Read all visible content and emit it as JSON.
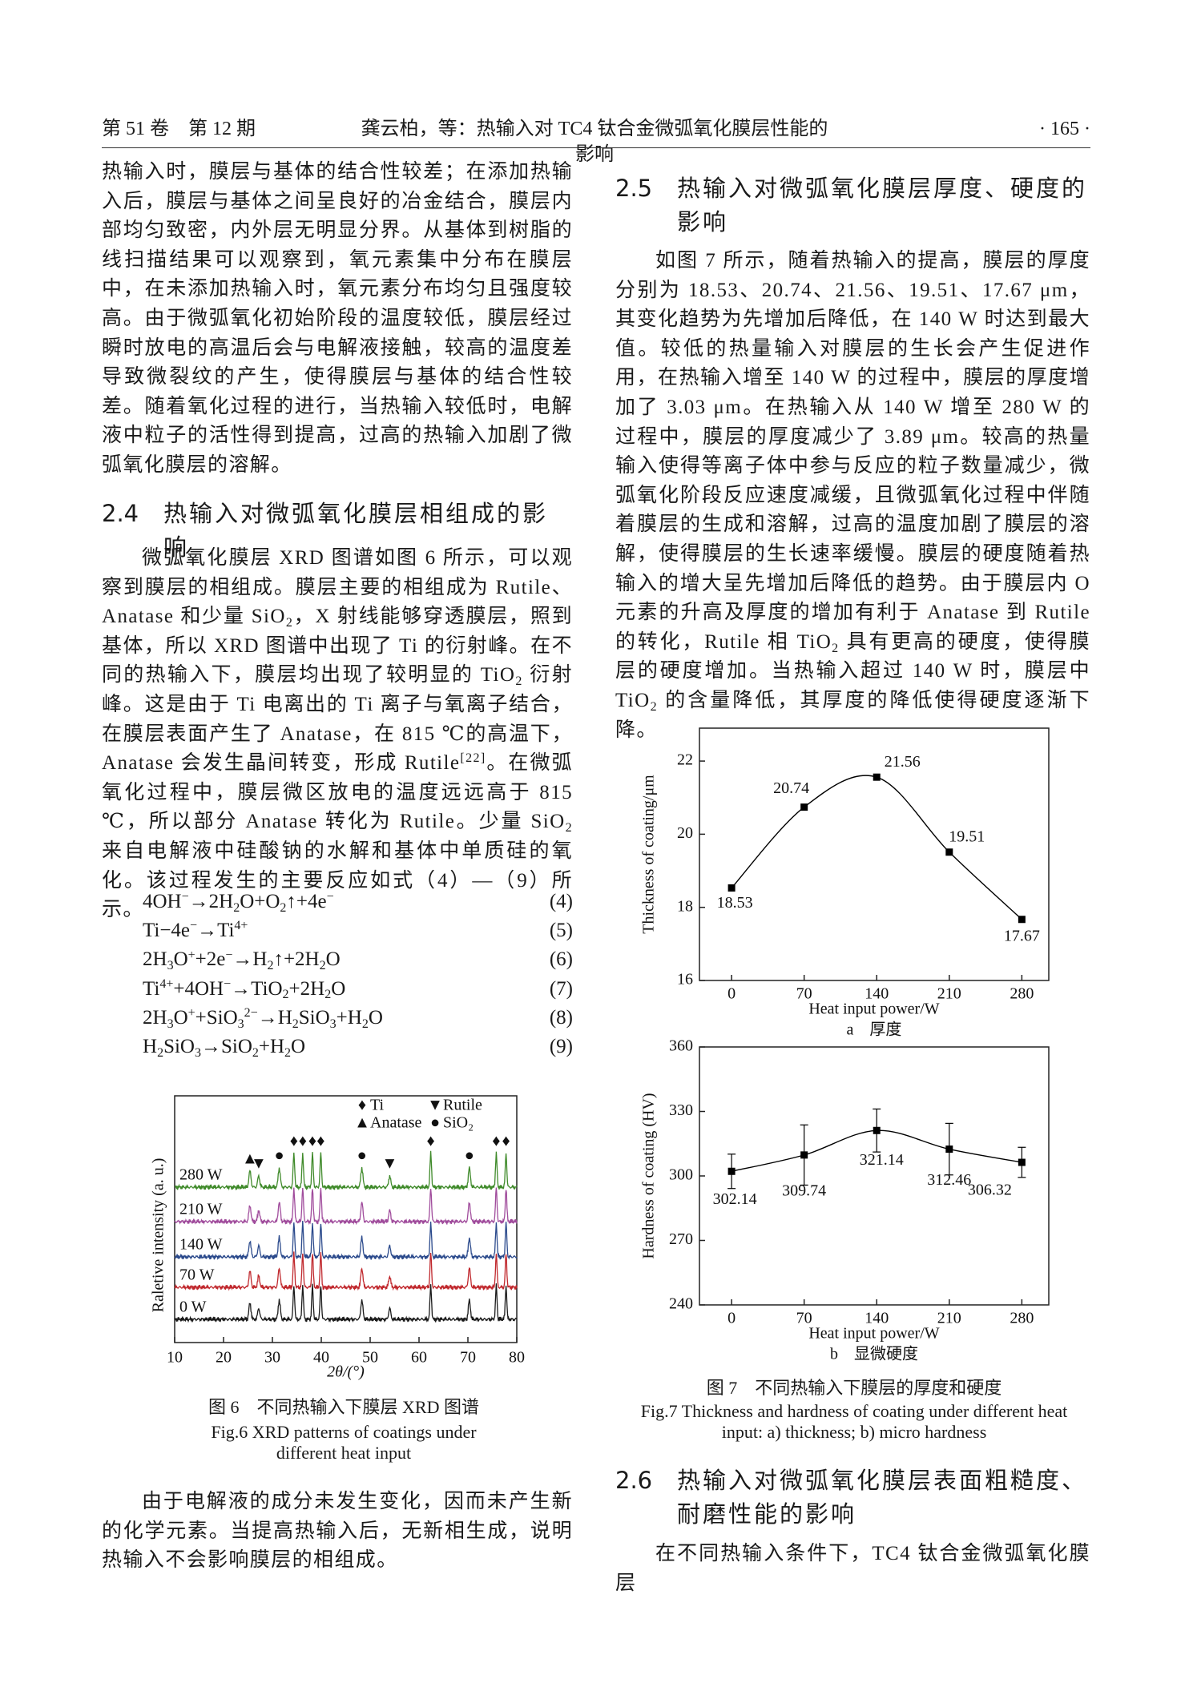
{
  "header": {
    "left": "第 51 卷　第 12 期",
    "center": "龚云柏，等：热输入对 TC4 钛合金微弧氧化膜层性能的影响",
    "right": "· 165 ·"
  },
  "para_1": [
    "热输入时，膜层与基体的结合性较差；在添加热输入后，膜层与基体之间呈良好的冶金结合，膜层内部均匀致密，内外层无明显分界。从基体到树脂的线扫描结果可以观察到，氧元素集中分布在膜层中，在未添加热输入时，氧元素分布均匀且强度较高。由于微弧氧化初始阶段的温度较低，膜层经过瞬时放电的高温后会与电解液接触，较高的温度差导致微裂纹的产生，使得膜层与基体的结合性较差。随着氧化过程的进行，当热输入较低时，电解液中粒子的活性得到提高，过高的热输入加剧了微弧氧化膜层的溶解。"
  ],
  "section_2_4": {
    "number": "2.4",
    "title": "热输入对微弧氧化膜层相组成的影响"
  },
  "para_2": [
    "微弧氧化膜层 XRD 图谱如图 6 所示，可以观察到膜层的相组成。膜层主要的相组成为 Rutile、Anatase 和少量 SiO",
    {
      "sub": "2"
    },
    "，X 射线能够穿透膜层，照到基体，所以 XRD 图谱中出现了 Ti 的衍射峰。在不同的热输入下，膜层均出现了较明显的 TiO",
    {
      "sub": "2"
    },
    " 衍射峰。这是由于 Ti 电离出的 Ti 离子与氧离子结合，在膜层表面产生了 Anatase，在 815 ℃的高温下，Anatase 会发生晶间转变，形成 Rutile",
    {
      "sup": "[22]"
    },
    "。在微弧氧化过程中，膜层微区放电的温度远远高于 815 ℃，所以部分 Anatase 转化为 Rutile。少量 SiO",
    {
      "sub": "2"
    },
    " 来自电解液中硅酸钠的水解和基体中单质硅的氧化。该过程发生的主要反应如式（4）—（9）所示。"
  ],
  "equations": [
    {
      "formula": [
        "4OH",
        {
          "sup": "−"
        },
        "→2H",
        {
          "sub": "2"
        },
        "O+O",
        {
          "sub": "2"
        },
        "↑+4e",
        {
          "sup": "−"
        }
      ],
      "number": "(4)"
    },
    {
      "formula": [
        "Ti−4e",
        {
          "sup": "−"
        },
        "→Ti",
        {
          "sup": "4+"
        }
      ],
      "number": "(5)"
    },
    {
      "formula": [
        "2H",
        {
          "sub": "3"
        },
        "O",
        {
          "sup": "+"
        },
        "+2e",
        {
          "sup": "−"
        },
        "→H",
        {
          "sub": "2"
        },
        "↑+2H",
        {
          "sub": "2"
        },
        "O"
      ],
      "number": "(6)"
    },
    {
      "formula": [
        "Ti",
        {
          "sup": "4+"
        },
        "+4OH",
        {
          "sup": "−"
        },
        "→TiO",
        {
          "sub": "2"
        },
        "+2H",
        {
          "sub": "2"
        },
        "O"
      ],
      "number": "(7)"
    },
    {
      "formula": [
        "2H",
        {
          "sub": "3"
        },
        "O",
        {
          "sup": "+"
        },
        "+SiO",
        {
          "sub": "3"
        },
        {
          "sup": "2−"
        },
        "→H",
        {
          "sub": "2"
        },
        "SiO",
        {
          "sub": "3"
        },
        "+H",
        {
          "sub": "2"
        },
        "O"
      ],
      "number": "(8)"
    },
    {
      "formula": [
        "H",
        {
          "sub": "2"
        },
        "SiO",
        {
          "sub": "3"
        },
        "→SiO",
        {
          "sub": "2"
        },
        "+H",
        {
          "sub": "2"
        },
        "O"
      ],
      "number": "(9)"
    }
  ],
  "figure_6": {
    "caption_cn": "图 6　不同热输入下膜层 XRD 图谱",
    "caption_en": "Fig.6 XRD patterns of coatings under different heat input",
    "chart": {
      "type": "xrd",
      "xlabel": "2θ/(°)",
      "ylabel": "Raletive intensity (a. u.)",
      "xlim": [
        10,
        80
      ],
      "xticks": [
        10,
        20,
        30,
        40,
        50,
        60,
        70,
        80
      ],
      "series": [
        {
          "name": "0 W",
          "color": "#1a1a1a"
        },
        {
          "name": "70 W",
          "color": "#c0282d"
        },
        {
          "name": "140 W",
          "color": "#2b4a8c"
        },
        {
          "name": "210 W",
          "color": "#a04c9c"
        },
        {
          "name": "280 W",
          "color": "#3f8a2a"
        }
      ],
      "phases": [
        {
          "name": "Ti",
          "symbol": "♦",
          "positions": [
            34.4,
            36.2,
            38.2,
            39.9,
            62.4,
            75.8,
            77.8
          ]
        },
        {
          "name": "Anatase",
          "symbol": "▲",
          "positions": [
            25.4
          ]
        },
        {
          "name": "Rutile",
          "symbol": "▼",
          "positions": [
            27.2,
            54.0
          ]
        },
        {
          "name": "SiO₂",
          "symbol": "●",
          "positions": [
            31.4,
            48.3,
            70.3
          ]
        }
      ]
    }
  },
  "para_3": [
    "由于电解液的成分未发生变化，因而未产生新的化学元素。当提高热输入后，无新相生成，说明热输入不会影响膜层的相组成。"
  ],
  "section_2_5": {
    "number": "2.5",
    "title": "热输入对微弧氧化膜层厚度、硬度的影响"
  },
  "para_4": [
    "如图 7 所示，随着热输入的提高，膜层的厚度分别为 18.53、20.74、21.56、19.51、17.67 μm，其变化趋势为先增加后降低，在 140 W 时达到最大值。较低的热量输入对膜层的生长会产生促进作用，在热输入增至 140 W 的过程中，膜层的厚度增加了 3.03 μm。在热输入从 140 W 增至 280 W 的过程中，膜层的厚度减少了 3.89 μm。较高的热量输入使得等离子体中参与反应的粒子数量减少，微弧氧化阶段反应速度减缓，且微弧氧化过程中伴随着膜层的生成和溶解，过高的温度加剧了膜层的溶解，使得膜层的生长速率缓慢。膜层的硬度随着热输入的增大呈先增加后降低的趋势。由于膜层内 O 元素的升高及厚度的增加有利于 Anatase 到 Rutile 的转化，Rutile 相 TiO",
    {
      "sub": "2"
    },
    " 具有更高的硬度，使得膜层的硬度增加。当热输入超过 140 W 时，膜层中 TiO",
    {
      "sub": "2"
    },
    " 的含量降低，其厚度的降低使得硬度逐渐下降。"
  ],
  "figure_7": {
    "caption_cn": "图 7　不同热输入下膜层的厚度和硬度",
    "caption_en": "Fig.7 Thickness and hardness of coating under different heat input: a) thickness; b) micro hardness",
    "charts": [
      {
        "type": "line",
        "sublabel": "a　厚度",
        "xlabel": "Heat input power/W",
        "ylabel": "Thickness of coating/μm",
        "x": [
          0,
          70,
          140,
          210,
          280
        ],
        "values": [
          18.53,
          20.74,
          21.56,
          19.51,
          17.67
        ],
        "xlim": [
          -31,
          306
        ],
        "xticks": [
          0,
          70,
          140,
          210,
          280
        ],
        "ylim": [
          16,
          22.9
        ],
        "yticks": [
          16,
          18,
          20,
          22
        ],
        "color": "#000000"
      },
      {
        "type": "errorbar",
        "sublabel": "b　显微硬度",
        "xlabel": "Heat input power/W",
        "ylabel": "Hardness of coating (HV)",
        "x": [
          0,
          70,
          140,
          210,
          280
        ],
        "values": [
          302.14,
          309.74,
          321.14,
          312.46,
          306.32
        ],
        "errors": [
          8,
          14,
          10,
          12,
          7
        ],
        "xlim": [
          -31,
          306
        ],
        "xticks": [
          0,
          70,
          140,
          210,
          280
        ],
        "ylim": [
          240,
          360
        ],
        "yticks": [
          240,
          270,
          300,
          330,
          360
        ],
        "color": "#000000"
      }
    ]
  },
  "section_2_6": {
    "number": "2.6",
    "title": "热输入对微弧氧化膜层表面粗糙度、耐磨性能的影响"
  },
  "para_5": [
    "在不同热输入条件下，TC4 钛合金微弧氧化膜层"
  ]
}
